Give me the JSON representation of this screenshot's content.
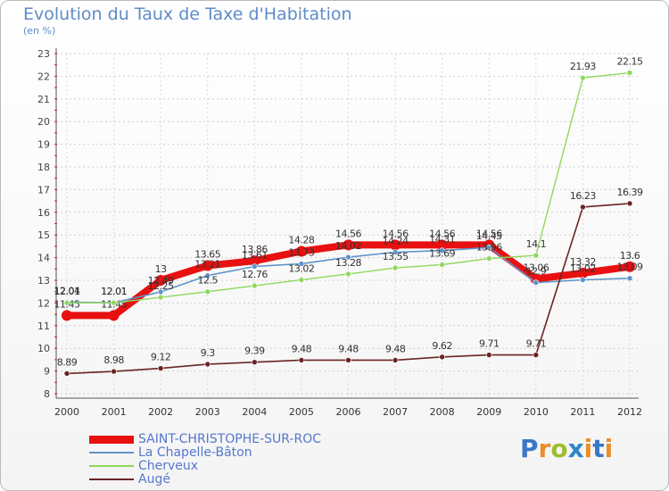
{
  "title": "Evolution du Taux de Taxe d'Habitation",
  "unit": "(en %)",
  "logo": [
    "P",
    "r",
    "o",
    "x",
    "i",
    "t",
    "i"
  ],
  "chart_data": {
    "type": "line",
    "title": "Evolution du Taux de Taxe d'Habitation",
    "ylabel": "(en %)",
    "xlabel": "",
    "x": [
      2000,
      2001,
      2002,
      2003,
      2004,
      2005,
      2006,
      2007,
      2008,
      2009,
      2010,
      2011,
      2012
    ],
    "ylim": [
      8,
      23
    ],
    "yticks": [
      8,
      9,
      10,
      11,
      12,
      13,
      14,
      15,
      16,
      17,
      18,
      19,
      20,
      21,
      22,
      23
    ],
    "grid": true,
    "legend_position": "bottom-left",
    "series": [
      {
        "name": "SAINT-CHRISTOPHE-SUR-ROC",
        "color": "#e81010",
        "values": [
          11.45,
          11.45,
          13,
          13.65,
          13.86,
          14.28,
          14.56,
          14.56,
          14.56,
          14.56,
          13.06,
          13.32,
          13.6
        ]
      },
      {
        "name": "La Chapelle-Bâton",
        "color": "#5f93c9",
        "values": [
          12.04,
          12.01,
          12.49,
          13.21,
          13.61,
          13.73,
          14.02,
          14.24,
          14.31,
          14.45,
          12.9,
          13.02,
          13.09
        ]
      },
      {
        "name": "Cherveux",
        "color": "#8fd85a",
        "values": [
          12.01,
          12.01,
          12.25,
          12.5,
          12.76,
          13.02,
          13.28,
          13.55,
          13.69,
          13.96,
          14.1,
          21.93,
          22.15
        ]
      },
      {
        "name": "Augé",
        "color": "#6b2424",
        "values": [
          8.89,
          8.98,
          9.12,
          9.3,
          9.39,
          9.48,
          9.48,
          9.48,
          9.62,
          9.71,
          9.71,
          16.23,
          16.39
        ]
      }
    ]
  }
}
